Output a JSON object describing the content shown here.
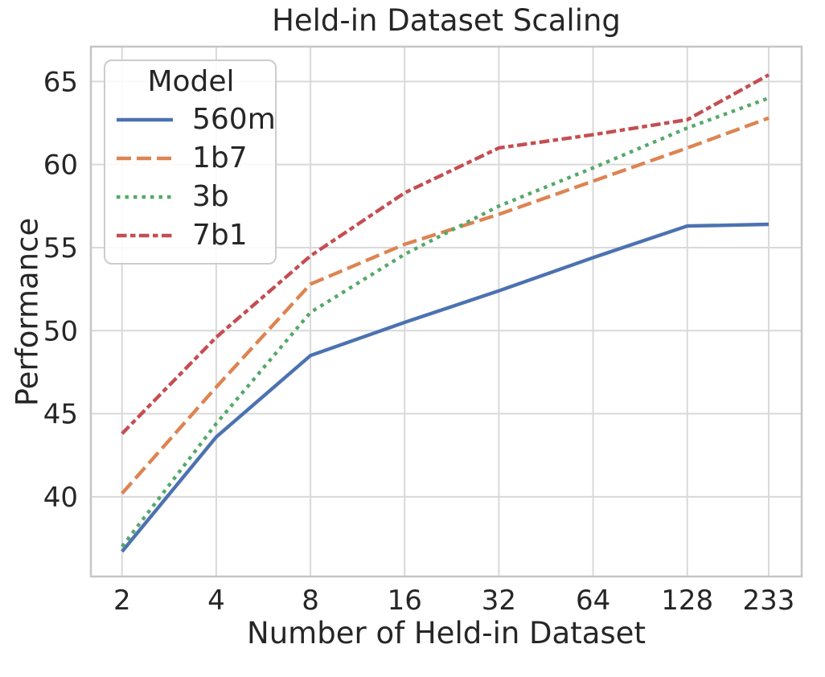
{
  "chart_data": {
    "type": "line",
    "title": "Held-in Dataset Scaling",
    "xlabel": "Number of Held-in Dataset",
    "ylabel": "Performance",
    "x_scale": "log2",
    "grid": true,
    "x": [
      2,
      4,
      8,
      16,
      32,
      64,
      128,
      233
    ],
    "x_tick_labels": [
      "2",
      "4",
      "8",
      "16",
      "32",
      "64",
      "128",
      "233"
    ],
    "y_ticks": [
      40,
      45,
      50,
      55,
      60,
      65
    ],
    "x_lim": [
      1.59,
      297
    ],
    "y_lim": [
      35.2,
      67.1
    ],
    "legend": {
      "title": "Model",
      "position": "upper-left"
    },
    "series": [
      {
        "name": "560m",
        "color": "#4C72B0",
        "line_style": "solid",
        "values": [
          36.7,
          43.6,
          48.5,
          50.5,
          52.4,
          54.4,
          56.3,
          56.4
        ]
      },
      {
        "name": "1b7",
        "color": "#DD8452",
        "line_style": "dashed",
        "values": [
          40.2,
          46.6,
          52.8,
          55.2,
          57.0,
          59.0,
          61.0,
          62.8
        ]
      },
      {
        "name": "3b",
        "color": "#55A868",
        "line_style": "dotted",
        "values": [
          37.0,
          44.4,
          51.1,
          54.6,
          57.5,
          59.8,
          62.2,
          64.0
        ]
      },
      {
        "name": "7b1",
        "color": "#C44E52",
        "line_style": "dashdot",
        "values": [
          43.8,
          49.6,
          54.5,
          58.3,
          61.0,
          61.8,
          62.7,
          65.4
        ]
      }
    ],
    "style": {
      "grid_color": "#D9D9D9",
      "spine_color": "#C6C6C6",
      "text_color": "#262626",
      "background": "#FFFFFF"
    }
  }
}
